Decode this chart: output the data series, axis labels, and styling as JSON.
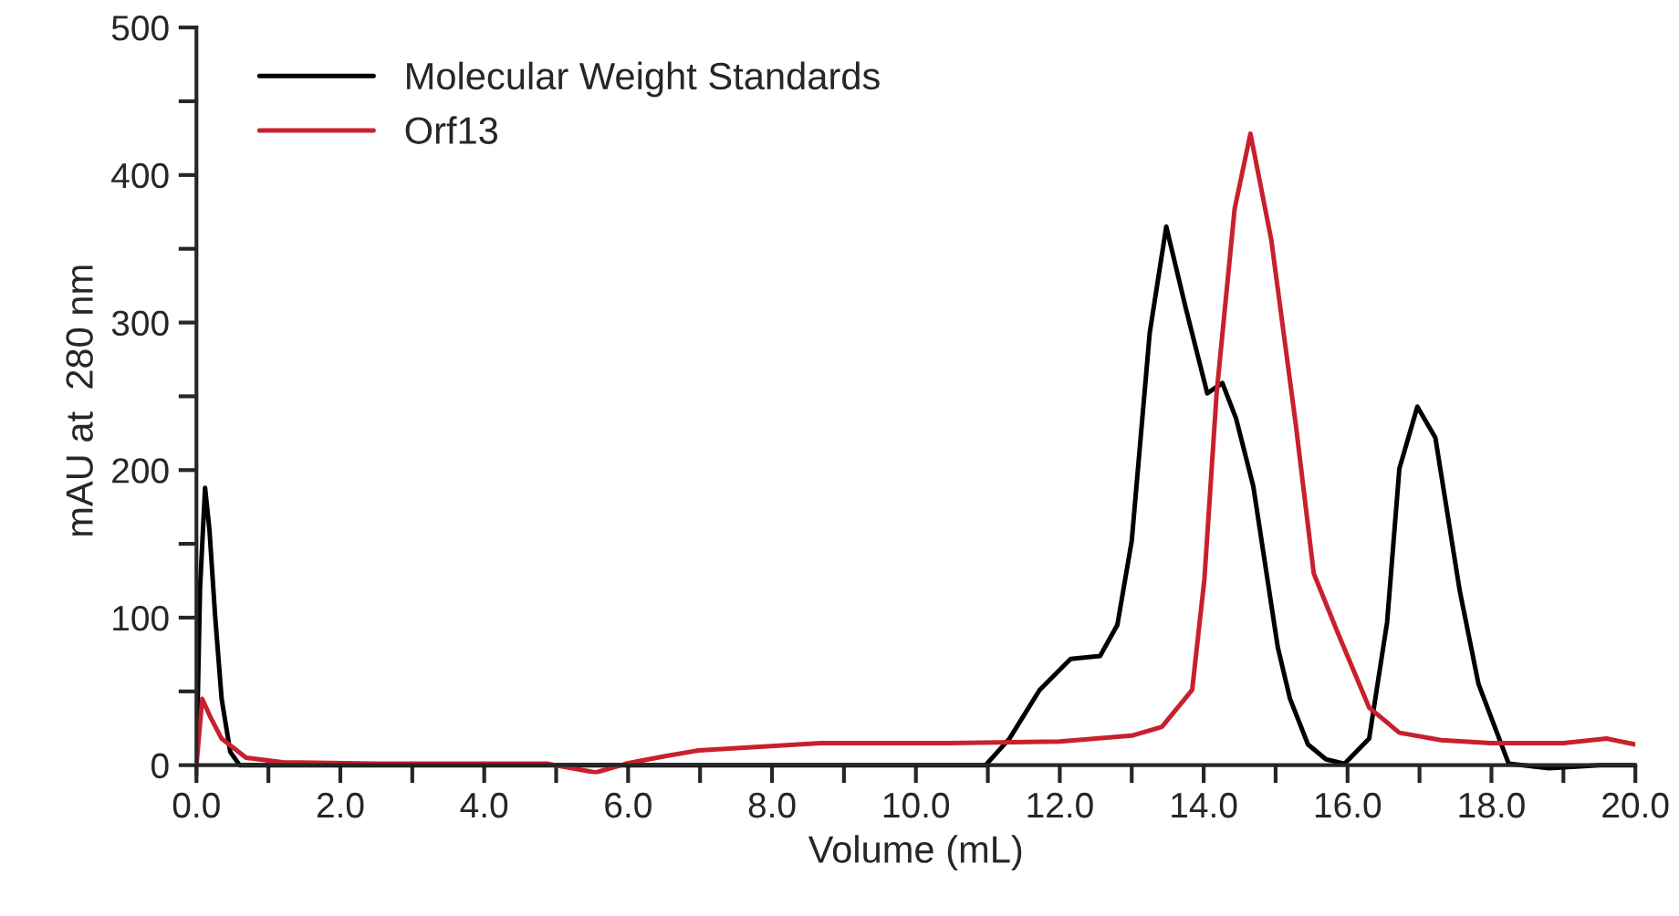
{
  "chart_data": {
    "type": "line",
    "xlabel": "Volume (mL)",
    "ylabel": "mAU at  280 nm",
    "xlim": [
      0,
      20
    ],
    "ylim": [
      -6,
      500
    ],
    "xticks": [
      {
        "value": 0,
        "label": "0.0"
      },
      {
        "value": 1,
        "label": null
      },
      {
        "value": 2,
        "label": "2.0"
      },
      {
        "value": 3,
        "label": null
      },
      {
        "value": 4,
        "label": "4.0"
      },
      {
        "value": 5,
        "label": null
      },
      {
        "value": 6,
        "label": "6.0"
      },
      {
        "value": 7,
        "label": null
      },
      {
        "value": 8,
        "label": "8.0"
      },
      {
        "value": 9,
        "label": null
      },
      {
        "value": 10,
        "label": "10.0"
      },
      {
        "value": 11,
        "label": null
      },
      {
        "value": 12,
        "label": "12.0"
      },
      {
        "value": 13,
        "label": null
      },
      {
        "value": 14,
        "label": "14.0"
      },
      {
        "value": 15,
        "label": null
      },
      {
        "value": 16,
        "label": "16.0"
      },
      {
        "value": 17,
        "label": null
      },
      {
        "value": 18,
        "label": "18.0"
      },
      {
        "value": 19,
        "label": null
      },
      {
        "value": 20,
        "label": "20.0"
      }
    ],
    "yticks": [
      0,
      {
        "value": 50,
        "label": null
      },
      100,
      {
        "value": 150,
        "label": null
      },
      200,
      {
        "value": 250,
        "label": null
      },
      300,
      {
        "value": 350,
        "label": null
      },
      400,
      {
        "value": 450,
        "label": null
      },
      500
    ],
    "grid": false,
    "legend": "top left",
    "marker": "none",
    "line_style": "solid",
    "series": [
      {
        "name": "Molecular Weight Standards",
        "color": "#000000",
        "x": [
          0,
          0.05,
          0.12,
          0.18,
          0.26,
          0.35,
          0.47,
          0.6,
          2,
          5,
          8,
          10.97,
          11.3,
          11.72,
          12.15,
          12.56,
          12.8,
          13.0,
          13.25,
          13.48,
          13.75,
          14.05,
          14.26,
          14.45,
          14.69,
          15.03,
          15.2,
          15.45,
          15.7,
          15.96,
          16.3,
          16.55,
          16.72,
          16.97,
          17.22,
          17.56,
          17.82,
          18.24,
          18.8,
          19.5,
          20
        ],
        "values": [
          1,
          120,
          188,
          160,
          101,
          45,
          9,
          0,
          0,
          0,
          0,
          0,
          18,
          51,
          72,
          74,
          95,
          152,
          293,
          365,
          310,
          252,
          259,
          235,
          189,
          80,
          45,
          14,
          4,
          1,
          18,
          97,
          201,
          243,
          222,
          118,
          55,
          1,
          -2,
          0,
          0
        ]
      },
      {
        "name": "Orf13",
        "color": "#c8202c",
        "x": [
          0,
          0.08,
          0.2,
          0.35,
          0.69,
          1.2,
          2.5,
          3.6,
          4.87,
          5.55,
          5.97,
          6.5,
          6.98,
          8.68,
          10.46,
          12.0,
          13.0,
          13.42,
          13.84,
          14.01,
          14.18,
          14.43,
          14.65,
          14.94,
          15.28,
          15.53,
          15.87,
          16.3,
          16.72,
          17.3,
          17.99,
          19.0,
          19.6,
          20.0
        ],
        "values": [
          0,
          45,
          32,
          18,
          5,
          2,
          1,
          1,
          1,
          -5,
          1,
          6,
          10,
          15,
          15,
          16,
          20,
          26,
          51,
          126,
          252,
          377,
          428,
          356,
          231,
          130,
          89,
          39,
          22,
          17,
          15,
          15,
          18,
          14
        ]
      }
    ]
  }
}
